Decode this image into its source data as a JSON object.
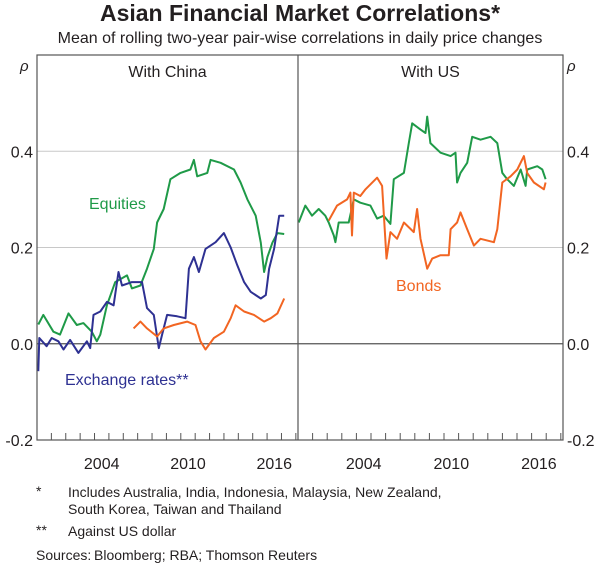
{
  "title": "Asian Financial Market Correlations*",
  "subtitle": "Mean of rolling two-year pair-wise correlations in daily price changes",
  "colors": {
    "equities": "#1f9a48",
    "exchange_rates": "#2e3192",
    "bonds": "#f26522",
    "grid": "#c8c8c8",
    "axis": "#555555"
  },
  "chart_data": [
    {
      "type": "line",
      "panel_title": "With China",
      "ylabel": "ρ",
      "ylim": [
        -0.2,
        0.6
      ],
      "xlim": [
        2000,
        2018.15
      ],
      "yticks": [
        "0.4",
        "0.2",
        "0.0",
        "-0.2"
      ],
      "xtick_labels": [
        "2004",
        "2010",
        "2016"
      ],
      "grid": true,
      "series": [
        {
          "name": "Equities",
          "color": "#1f9a48",
          "points": [
            [
              2000.09,
              0.04
            ],
            [
              2000.44,
              0.06
            ],
            [
              2001.14,
              0.025
            ],
            [
              2001.6,
              0.019
            ],
            [
              2002.19,
              0.063
            ],
            [
              2002.77,
              0.039
            ],
            [
              2003.23,
              0.043
            ],
            [
              2003.81,
              0.025
            ],
            [
              2004.16,
              0.005
            ],
            [
              2004.4,
              0.019
            ],
            [
              2004.86,
              0.08
            ],
            [
              2005.44,
              0.128
            ],
            [
              2006.26,
              0.142
            ],
            [
              2006.6,
              0.115
            ],
            [
              2007.19,
              0.121
            ],
            [
              2007.65,
              0.156
            ],
            [
              2008.12,
              0.197
            ],
            [
              2008.35,
              0.252
            ],
            [
              2008.81,
              0.28
            ],
            [
              2009.28,
              0.342
            ],
            [
              2009.98,
              0.355
            ],
            [
              2010.67,
              0.362
            ],
            [
              2010.91,
              0.382
            ],
            [
              2011.14,
              0.348
            ],
            [
              2011.84,
              0.355
            ],
            [
              2012.07,
              0.382
            ],
            [
              2012.77,
              0.376
            ],
            [
              2013.7,
              0.362
            ],
            [
              2014.16,
              0.335
            ],
            [
              2014.63,
              0.3
            ],
            [
              2015.21,
              0.266
            ],
            [
              2015.56,
              0.21
            ],
            [
              2015.79,
              0.149
            ],
            [
              2016.02,
              0.18
            ],
            [
              2016.37,
              0.21
            ],
            [
              2016.72,
              0.23
            ],
            [
              2017.19,
              0.228
            ]
          ]
        },
        {
          "name": "Exchange rates**",
          "color": "#2e3192",
          "points": [
            [
              2000.09,
              -0.057
            ],
            [
              2000.16,
              0.012
            ],
            [
              2000.67,
              -0.005
            ],
            [
              2001.02,
              0.012
            ],
            [
              2001.49,
              0.005
            ],
            [
              2001.84,
              -0.012
            ],
            [
              2002.3,
              0.008
            ],
            [
              2002.88,
              -0.019
            ],
            [
              2003.47,
              0.005
            ],
            [
              2003.7,
              -0.009
            ],
            [
              2003.93,
              0.06
            ],
            [
              2004.4,
              0.067
            ],
            [
              2004.86,
              0.087
            ],
            [
              2005.33,
              0.08
            ],
            [
              2005.67,
              0.149
            ],
            [
              2005.91,
              0.121
            ],
            [
              2006.6,
              0.128
            ],
            [
              2007.3,
              0.128
            ],
            [
              2007.65,
              0.074
            ],
            [
              2008.12,
              0.06
            ],
            [
              2008.47,
              -0.009
            ],
            [
              2008.7,
              0.019
            ],
            [
              2009.05,
              0.06
            ],
            [
              2009.74,
              0.057
            ],
            [
              2010.33,
              0.053
            ],
            [
              2010.56,
              0.156
            ],
            [
              2010.91,
              0.18
            ],
            [
              2011.26,
              0.149
            ],
            [
              2011.72,
              0.197
            ],
            [
              2012.42,
              0.211
            ],
            [
              2013.0,
              0.23
            ],
            [
              2013.47,
              0.2
            ],
            [
              2013.93,
              0.163
            ],
            [
              2014.4,
              0.128
            ],
            [
              2014.86,
              0.108
            ],
            [
              2015.56,
              0.094
            ],
            [
              2015.91,
              0.101
            ],
            [
              2016.14,
              0.156
            ],
            [
              2016.49,
              0.197
            ],
            [
              2016.84,
              0.266
            ],
            [
              2017.19,
              0.266
            ]
          ]
        },
        {
          "name": "Bonds",
          "color": "#f26522",
          "points": [
            [
              2006.72,
              0.032
            ],
            [
              2007.19,
              0.046
            ],
            [
              2007.65,
              0.032
            ],
            [
              2008.35,
              0.015
            ],
            [
              2008.81,
              0.032
            ],
            [
              2009.51,
              0.039
            ],
            [
              2010.44,
              0.046
            ],
            [
              2011.02,
              0.039
            ],
            [
              2011.37,
              0.005
            ],
            [
              2011.72,
              -0.012
            ],
            [
              2012.3,
              0.012
            ],
            [
              2013.0,
              0.025
            ],
            [
              2013.47,
              0.053
            ],
            [
              2013.81,
              0.08
            ],
            [
              2014.4,
              0.067
            ],
            [
              2015.09,
              0.06
            ],
            [
              2015.79,
              0.046
            ],
            [
              2016.26,
              0.053
            ],
            [
              2016.72,
              0.063
            ],
            [
              2017.19,
              0.094
            ]
          ]
        }
      ],
      "labels": [
        "Equities",
        "Exchange rates**"
      ]
    },
    {
      "type": "line",
      "panel_title": "With US",
      "ylabel": "ρ",
      "ylim": [
        -0.2,
        0.6
      ],
      "xlim": [
        2000,
        2018.15
      ],
      "yticks": [
        "0.4",
        "0.2",
        "0.0",
        "-0.2"
      ],
      "xtick_labels": [
        "2004",
        "2010",
        "2016"
      ],
      "grid": true,
      "series": [
        {
          "name": "Equities",
          "color": "#1f9a48",
          "points": [
            [
              2000.05,
              0.252
            ],
            [
              2000.5,
              0.287
            ],
            [
              2000.96,
              0.266
            ],
            [
              2001.42,
              0.28
            ],
            [
              2001.87,
              0.266
            ],
            [
              2002.1,
              0.252
            ],
            [
              2002.45,
              0.225
            ],
            [
              2002.56,
              0.211
            ],
            [
              2002.79,
              0.252
            ],
            [
              2003.47,
              0.252
            ],
            [
              2003.82,
              0.3
            ],
            [
              2004.27,
              0.293
            ],
            [
              2004.96,
              0.287
            ],
            [
              2005.42,
              0.26
            ],
            [
              2005.87,
              0.266
            ],
            [
              2006.33,
              0.249
            ],
            [
              2006.56,
              0.342
            ],
            [
              2007.25,
              0.355
            ],
            [
              2007.59,
              0.417
            ],
            [
              2007.82,
              0.458
            ],
            [
              2008.39,
              0.445
            ],
            [
              2008.73,
              0.438
            ],
            [
              2008.85,
              0.472
            ],
            [
              2009.07,
              0.417
            ],
            [
              2009.76,
              0.397
            ],
            [
              2010.45,
              0.39
            ],
            [
              2010.79,
              0.397
            ],
            [
              2010.9,
              0.335
            ],
            [
              2011.13,
              0.355
            ],
            [
              2011.59,
              0.376
            ],
            [
              2011.93,
              0.43
            ],
            [
              2012.5,
              0.424
            ],
            [
              2013.19,
              0.43
            ],
            [
              2013.65,
              0.417
            ],
            [
              2013.99,
              0.355
            ],
            [
              2014.33,
              0.342
            ],
            [
              2014.79,
              0.328
            ],
            [
              2015.25,
              0.362
            ],
            [
              2015.59,
              0.328
            ],
            [
              2015.7,
              0.362
            ],
            [
              2016.39,
              0.369
            ],
            [
              2016.73,
              0.362
            ],
            [
              2016.96,
              0.342
            ]
          ]
        },
        {
          "name": "Bonds",
          "color": "#f26522",
          "points": [
            [
              2002.1,
              0.256
            ],
            [
              2002.67,
              0.287
            ],
            [
              2003.36,
              0.3
            ],
            [
              2003.59,
              0.314
            ],
            [
              2003.7,
              0.225
            ],
            [
              2003.82,
              0.314
            ],
            [
              2004.27,
              0.307
            ],
            [
              2004.62,
              0.321
            ],
            [
              2005.42,
              0.345
            ],
            [
              2005.76,
              0.328
            ],
            [
              2006.06,
              0.177
            ],
            [
              2006.33,
              0.232
            ],
            [
              2006.79,
              0.218
            ],
            [
              2007.25,
              0.252
            ],
            [
              2007.93,
              0.232
            ],
            [
              2008.16,
              0.28
            ],
            [
              2008.39,
              0.218
            ],
            [
              2008.85,
              0.156
            ],
            [
              2009.19,
              0.177
            ],
            [
              2009.76,
              0.184
            ],
            [
              2010.33,
              0.184
            ],
            [
              2010.45,
              0.238
            ],
            [
              2010.9,
              0.252
            ],
            [
              2011.13,
              0.273
            ],
            [
              2011.59,
              0.238
            ],
            [
              2012.05,
              0.204
            ],
            [
              2012.5,
              0.218
            ],
            [
              2013.42,
              0.211
            ],
            [
              2013.65,
              0.238
            ],
            [
              2013.99,
              0.335
            ],
            [
              2014.56,
              0.348
            ],
            [
              2015.02,
              0.362
            ],
            [
              2015.47,
              0.39
            ],
            [
              2015.7,
              0.355
            ],
            [
              2016.16,
              0.335
            ],
            [
              2016.84,
              0.321
            ],
            [
              2016.96,
              0.335
            ]
          ]
        }
      ],
      "labels": [
        "Bonds"
      ]
    }
  ],
  "footnotes": [
    {
      "mark": "*",
      "text": "Includes Australia, India, Indonesia, Malaysia, New Zealand,"
    },
    {
      "mark": "",
      "text": "South Korea, Taiwan and Thailand"
    },
    {
      "mark": "**",
      "text": "Against US dollar"
    }
  ],
  "sources": {
    "label": "Sources:",
    "text": "Bloomberg; RBA; Thomson Reuters"
  }
}
